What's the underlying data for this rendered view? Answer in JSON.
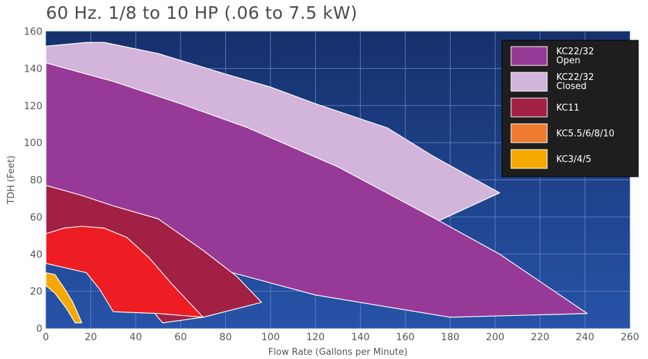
{
  "chart_data": {
    "type": "area",
    "title": "60 Hz. 1/8 to 10 HP (.06 to 7.5 kW)",
    "xlabel": "Flow Rate (Gallons per Minute)",
    "ylabel": "TDH (Feet)",
    "xlim": [
      0,
      260
    ],
    "ylim": [
      0,
      160
    ],
    "xticks": [
      0,
      20,
      40,
      60,
      80,
      100,
      120,
      140,
      160,
      180,
      200,
      220,
      240,
      260
    ],
    "yticks": [
      0,
      20,
      40,
      60,
      80,
      100,
      120,
      140,
      160
    ],
    "grid": true,
    "legend_position": "top-right",
    "background": "#1c3f8a",
    "series": [
      {
        "name": [
          "KC22/32",
          "Closed"
        ],
        "color": "#d3b4da",
        "polygon": [
          [
            0,
            152
          ],
          [
            18,
            154
          ],
          [
            26,
            154
          ],
          [
            50,
            148
          ],
          [
            80,
            137
          ],
          [
            100,
            130
          ],
          [
            120,
            121
          ],
          [
            152,
            108
          ],
          [
            172,
            93
          ],
          [
            202,
            73
          ],
          [
            175,
            58
          ],
          [
            120,
            84
          ],
          [
            50,
            125
          ],
          [
            0,
            143
          ]
        ]
      },
      {
        "name": [
          "KC22/32",
          "Open"
        ],
        "color": "#973a97",
        "polygon": [
          [
            0,
            143
          ],
          [
            30,
            133
          ],
          [
            60,
            121
          ],
          [
            90,
            108
          ],
          [
            130,
            87
          ],
          [
            175,
            58
          ],
          [
            202,
            40
          ],
          [
            241,
            8
          ],
          [
            180,
            6
          ],
          [
            120,
            18
          ],
          [
            80,
            31
          ],
          [
            40,
            43
          ],
          [
            0,
            56
          ]
        ]
      },
      {
        "name": [
          "KC11"
        ],
        "color": "#a22043",
        "polygon": [
          [
            0,
            77
          ],
          [
            15,
            72
          ],
          [
            30,
            66
          ],
          [
            50,
            59
          ],
          [
            70,
            42
          ],
          [
            85,
            28
          ],
          [
            96,
            14
          ],
          [
            70,
            6
          ],
          [
            52,
            3
          ],
          [
            40,
            20
          ],
          [
            0,
            47
          ]
        ]
      },
      {
        "name": [
          "KC5.5/6/8/10"
        ],
        "color": "#ee1d23",
        "polygon": [
          [
            0,
            51
          ],
          [
            8,
            54
          ],
          [
            16,
            55
          ],
          [
            26,
            54
          ],
          [
            36,
            49
          ],
          [
            46,
            38
          ],
          [
            56,
            24
          ],
          [
            70,
            6
          ],
          [
            50,
            8
          ],
          [
            30,
            9
          ],
          [
            24,
            21
          ],
          [
            18,
            30
          ],
          [
            0,
            35
          ]
        ]
      },
      {
        "name": [
          "KC3/4/5"
        ],
        "color": "#f7a800",
        "polygon": [
          [
            0,
            30
          ],
          [
            4,
            29
          ],
          [
            8,
            22
          ],
          [
            12,
            14
          ],
          [
            16,
            3
          ],
          [
            13,
            3
          ],
          [
            9,
            11
          ],
          [
            4,
            19
          ],
          [
            0,
            23
          ]
        ]
      }
    ],
    "legend": [
      {
        "label": [
          "KC22/32",
          "Open"
        ],
        "color": "#973a97"
      },
      {
        "label": [
          "KC22/32",
          "Closed"
        ],
        "color": "#d3b4da"
      },
      {
        "label": [
          "KC11"
        ],
        "color": "#a22043"
      },
      {
        "label": [
          "KC5.5/6/8/10"
        ],
        "color": "#f07a30"
      },
      {
        "label": [
          "KC3/4/5"
        ],
        "color": "#f7a800"
      }
    ]
  }
}
